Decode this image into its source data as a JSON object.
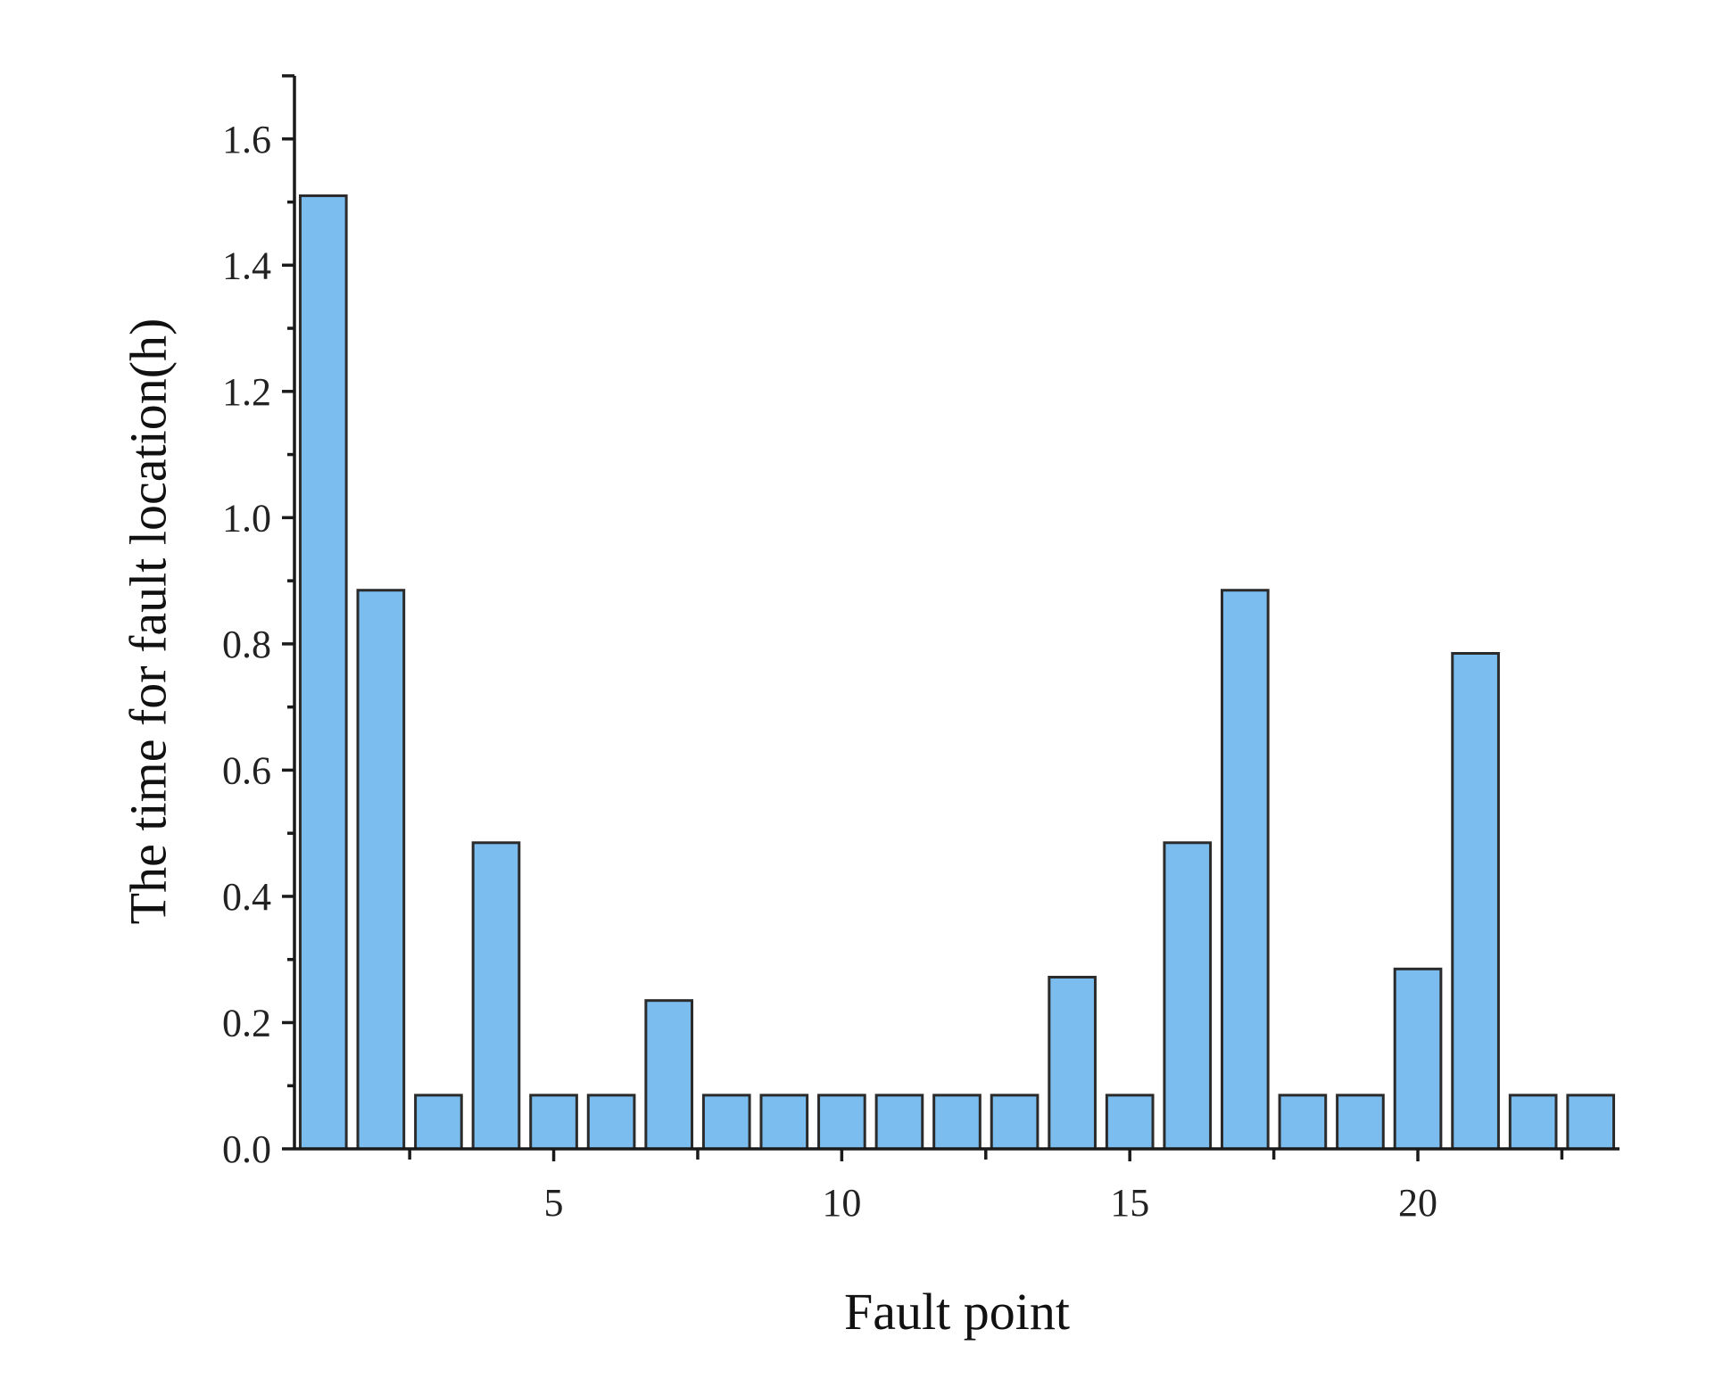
{
  "chart_data": {
    "type": "bar",
    "xlabel": "Fault point",
    "ylabel": "The time for fault location(h)",
    "categories": [
      1,
      2,
      3,
      4,
      5,
      6,
      7,
      8,
      9,
      10,
      11,
      12,
      13,
      14,
      15,
      16,
      17,
      18,
      19,
      20,
      21,
      22,
      23
    ],
    "values": [
      1.51,
      0.885,
      0.085,
      0.485,
      0.085,
      0.085,
      0.235,
      0.085,
      0.085,
      0.085,
      0.085,
      0.085,
      0.085,
      0.272,
      0.085,
      0.485,
      0.885,
      0.085,
      0.085,
      0.285,
      0.785,
      0.085,
      0.085
    ],
    "xlim": [
      0.5,
      23.5
    ],
    "ylim": [
      0,
      1.7
    ],
    "xticks": [
      5,
      10,
      15,
      20
    ],
    "xtick_labels": [
      "5",
      "10",
      "15",
      "20"
    ],
    "yticks": [
      0.0,
      0.2,
      0.4,
      0.6,
      0.8,
      1.0,
      1.2,
      1.4,
      1.6
    ],
    "ytick_labels": [
      "0.0",
      "0.2",
      "0.4",
      "0.6",
      "0.8",
      "1.0",
      "1.2",
      "1.4",
      "1.6"
    ],
    "bar_color": "#7abdee",
    "bar_edge_color": "#2b2b2b",
    "grid": false,
    "legend": "none"
  }
}
